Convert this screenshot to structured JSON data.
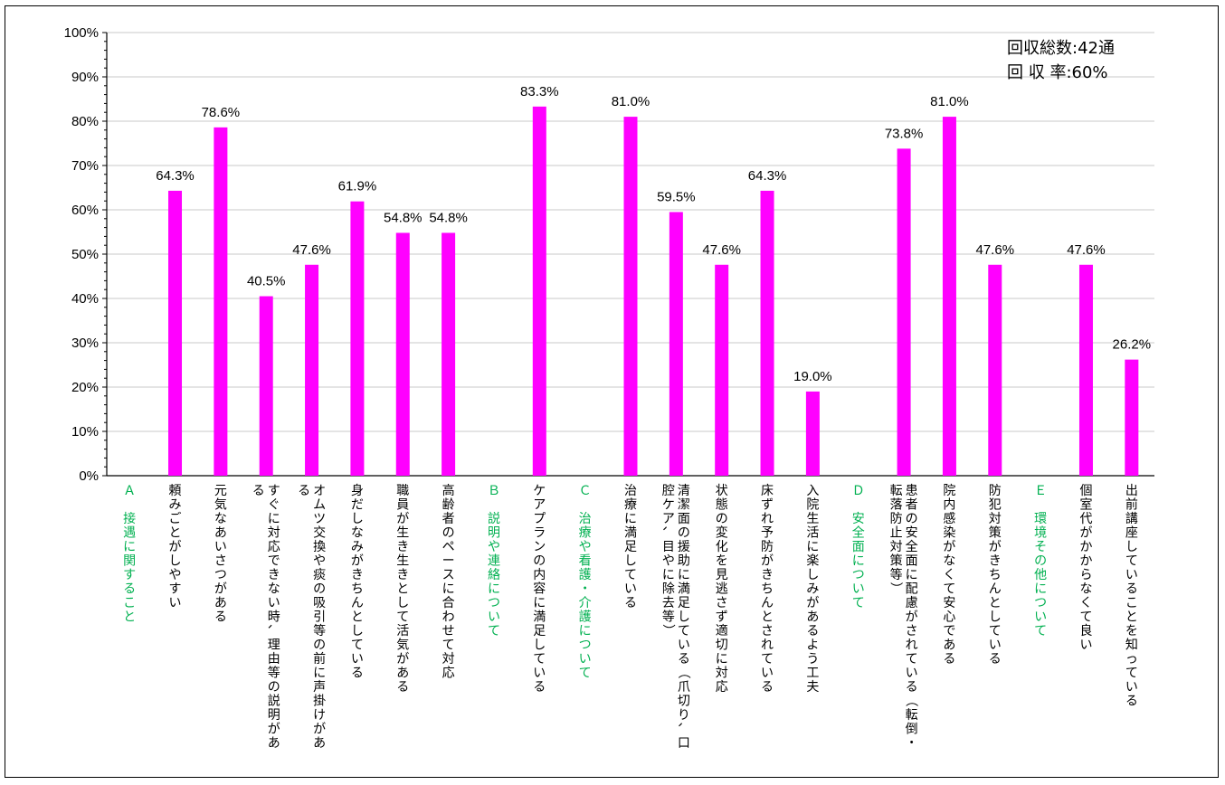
{
  "chart_data": {
    "type": "bar",
    "ylim": [
      0,
      100
    ],
    "y_ticks": [
      "0%",
      "10%",
      "20%",
      "30%",
      "40%",
      "50%",
      "60%",
      "70%",
      "80%",
      "90%",
      "100%"
    ],
    "grid": "horizontal",
    "bar_color": "#ff00ff",
    "section_color": "#00b050",
    "label_color": "#000000",
    "summary": [
      "回収総数:42通",
      "回 収 率:60%"
    ],
    "categories": [
      {
        "label": "Ａ 接遇に関すること",
        "value": null,
        "section": true
      },
      {
        "label": "頼みごとがしやすい",
        "value": 64.3,
        "display": "64.3%"
      },
      {
        "label": "元気なあいさつがある",
        "value": 78.6,
        "display": "78.6%"
      },
      {
        "label": "すぐに対応できない時、理由等の説明がある",
        "value": 40.5,
        "display": "40.5%"
      },
      {
        "label": "オムツ交換や痰の吸引等の前に声掛けがある",
        "value": 47.6,
        "display": "47.6%"
      },
      {
        "label": "身だしなみがきちんとしている",
        "value": 61.9,
        "display": "61.9%"
      },
      {
        "label": "職員が生き生きとして活気がある",
        "value": 54.8,
        "display": "54.8%"
      },
      {
        "label": "高齢者のペースに合わせて対応",
        "value": 54.8,
        "display": "54.8%"
      },
      {
        "label": "Ｂ 説明や連絡について",
        "value": null,
        "section": true
      },
      {
        "label": "ケアプランの内容に満足している",
        "value": 83.3,
        "display": "83.3%"
      },
      {
        "label": "Ｃ 治療や看護・介護について",
        "value": null,
        "section": true
      },
      {
        "label": "治療に満足している",
        "value": 81.0,
        "display": "81.0%"
      },
      {
        "label": "清潔面の援助に満足している（爪切り、口腔ケア、目やに除去等）",
        "value": 59.5,
        "display": "59.5%"
      },
      {
        "label": "状態の変化を見逃さず適切に対応",
        "value": 47.6,
        "display": "47.6%"
      },
      {
        "label": "床ずれ予防がきちんとされている",
        "value": 64.3,
        "display": "64.3%"
      },
      {
        "label": "入院生活に楽しみがあるよう工夫",
        "value": 19.0,
        "display": "19.0%"
      },
      {
        "label": "Ｄ 安全面について",
        "value": null,
        "section": true
      },
      {
        "label": "患者の安全面に配慮がされている（転倒・転落防止対策等）",
        "value": 73.8,
        "display": "73.8%"
      },
      {
        "label": "院内感染がなくて安心である",
        "value": 81.0,
        "display": "81.0%"
      },
      {
        "label": "防犯対策がきちんとしている",
        "value": 47.6,
        "display": "47.6%"
      },
      {
        "label": "Ｅ 環境その他について",
        "value": null,
        "section": true
      },
      {
        "label": "個室代がかからなくて良い",
        "value": 47.6,
        "display": "47.6%"
      },
      {
        "label": "出前講座していることを知っている",
        "value": 26.2,
        "display": "26.2%"
      }
    ]
  }
}
